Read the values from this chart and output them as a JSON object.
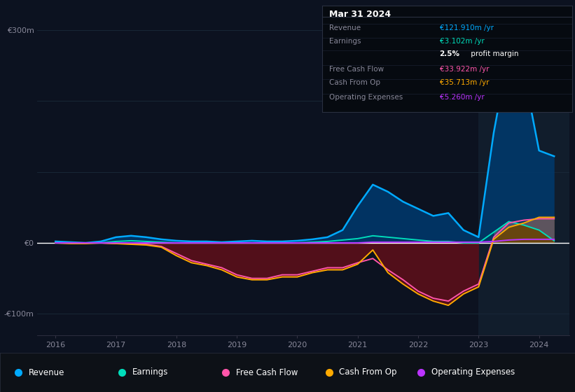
{
  "bg_color": "#0c1220",
  "chart_bg": "#0c1220",
  "highlight_bg": "#111d2c",
  "grid_color": "#1a2a3a",
  "zero_line_color": "#ffffff",
  "years": [
    2016.0,
    2016.25,
    2016.5,
    2016.75,
    2017.0,
    2017.25,
    2017.5,
    2017.75,
    2018.0,
    2018.25,
    2018.5,
    2018.75,
    2019.0,
    2019.25,
    2019.5,
    2019.75,
    2020.0,
    2020.25,
    2020.5,
    2020.75,
    2021.0,
    2021.25,
    2021.5,
    2021.75,
    2022.0,
    2022.25,
    2022.5,
    2022.75,
    2023.0,
    2023.25,
    2023.5,
    2023.75,
    2024.0,
    2024.25
  ],
  "revenue": [
    2,
    1,
    0,
    2,
    8,
    10,
    8,
    5,
    3,
    2,
    2,
    1,
    2,
    3,
    2,
    2,
    3,
    5,
    8,
    18,
    52,
    82,
    72,
    58,
    48,
    38,
    42,
    18,
    8,
    155,
    270,
    240,
    130,
    122
  ],
  "earnings": [
    0,
    0,
    0,
    0,
    2,
    3,
    2,
    1,
    0,
    0,
    0,
    0,
    0,
    0,
    0,
    0,
    0,
    1,
    2,
    4,
    6,
    10,
    8,
    6,
    4,
    2,
    2,
    0,
    0,
    15,
    30,
    25,
    18,
    3
  ],
  "free_cash_flow": [
    0,
    0,
    0,
    0,
    -1,
    -1,
    -2,
    -5,
    -15,
    -25,
    -30,
    -35,
    -45,
    -50,
    -50,
    -45,
    -45,
    -40,
    -35,
    -35,
    -28,
    -22,
    -38,
    -52,
    -68,
    -78,
    -82,
    -68,
    -58,
    8,
    28,
    32,
    34,
    34
  ],
  "cash_from_op": [
    0,
    -1,
    -1,
    0,
    -1,
    -2,
    -3,
    -6,
    -18,
    -28,
    -32,
    -38,
    -48,
    -52,
    -52,
    -48,
    -48,
    -42,
    -38,
    -38,
    -30,
    -10,
    -42,
    -58,
    -72,
    -82,
    -88,
    -72,
    -62,
    5,
    22,
    28,
    36,
    36
  ],
  "operating_expenses": [
    0,
    0,
    0,
    0,
    0,
    0,
    0,
    0,
    0,
    0,
    0,
    0,
    0,
    0,
    0,
    0,
    0,
    0,
    0,
    0,
    0,
    1,
    1,
    1,
    1,
    1,
    1,
    1,
    1,
    2,
    4,
    5,
    5,
    5
  ],
  "revenue_color": "#00aaff",
  "earnings_color": "#00ddbb",
  "fcf_color": "#ff55aa",
  "cashop_color": "#ffaa00",
  "opex_color": "#bb33ff",
  "highlight_x_start": 2023.0,
  "xlim_left": 2015.7,
  "xlim_right": 2024.5,
  "ylim": [
    -130,
    320
  ],
  "xticks": [
    2016,
    2017,
    2018,
    2019,
    2020,
    2021,
    2022,
    2023,
    2024
  ],
  "legend_items": [
    {
      "label": "Revenue",
      "color": "#00aaff"
    },
    {
      "label": "Earnings",
      "color": "#00ddbb"
    },
    {
      "label": "Free Cash Flow",
      "color": "#ff55aa"
    },
    {
      "label": "Cash From Op",
      "color": "#ffaa00"
    },
    {
      "label": "Operating Expenses",
      "color": "#bb33ff"
    }
  ],
  "tooltip_date": "Mar 31 2024",
  "tooltip_rows": [
    {
      "label": "Revenue",
      "value": "€121.910m /yr",
      "label_color": "#888899",
      "value_color": "#00aaff"
    },
    {
      "label": "Earnings",
      "value": "€3.102m /yr",
      "label_color": "#888899",
      "value_color": "#00ddbb"
    },
    {
      "label": "",
      "value": "",
      "label_color": "#888899",
      "value_color": "#ffffff",
      "extra_bold": "2.5%",
      "extra_normal": " profit margin"
    },
    {
      "label": "Free Cash Flow",
      "value": "€33.922m /yr",
      "label_color": "#888899",
      "value_color": "#ff55aa"
    },
    {
      "label": "Cash From Op",
      "value": "€35.713m /yr",
      "label_color": "#888899",
      "value_color": "#ffaa00"
    },
    {
      "label": "Operating Expenses",
      "value": "€5.260m /yr",
      "label_color": "#888899",
      "value_color": "#bb33ff"
    }
  ]
}
